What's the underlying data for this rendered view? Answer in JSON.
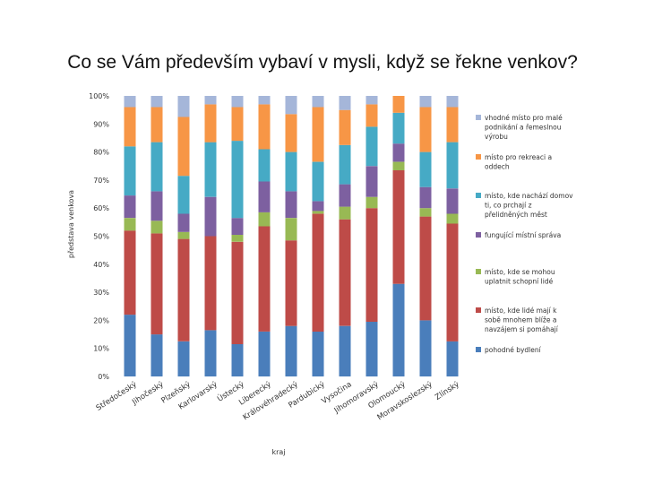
{
  "slide": {
    "title": "Co se Vám především vybaví v mysli, když se řekne venkov?"
  },
  "chart_data": {
    "type": "bar",
    "stacked": true,
    "percent": true,
    "ylabel": "představa venkova",
    "xlabel": "kraj",
    "ylim": [
      0,
      100
    ],
    "y_ticks": [
      "0%",
      "10%",
      "20%",
      "30%",
      "40%",
      "50%",
      "60%",
      "70%",
      "80%",
      "90%",
      "100%"
    ],
    "grid": false,
    "legend_position": "right",
    "categories": [
      "Středočeský",
      "Jihočeský",
      "Plzeňský",
      "Karlovarský",
      "Ústecký",
      "Liberecký",
      "Královéhradecký",
      "Pardubický",
      "Vysočina",
      "Jihomoravský",
      "Olomoucký",
      "Moravskoslezský",
      "Zlínský"
    ],
    "series": [
      {
        "name": "pohodné bydlení",
        "color": "#4A7EBB",
        "values": [
          22,
          15,
          12.5,
          16.5,
          11.5,
          16,
          18,
          16,
          18,
          19.5,
          33,
          20,
          12.5
        ]
      },
      {
        "name": "místo, kde lidé mají k sobě mnohem blíže a navzájem si pomáhají",
        "color": "#BE4B48",
        "values": [
          30,
          36,
          36.5,
          33.5,
          36.5,
          37.5,
          30.5,
          42,
          38,
          40.5,
          40.5,
          37,
          42
        ]
      },
      {
        "name": "místo, kde se mohou uplatnit schopní lidé",
        "color": "#98B954",
        "values": [
          4.5,
          4.5,
          2.5,
          0,
          2.5,
          5,
          8,
          1,
          4.5,
          4,
          3,
          3,
          3.5
        ]
      },
      {
        "name": "fungující místní správa",
        "color": "#7D60A0",
        "values": [
          8,
          10.5,
          6.5,
          14,
          6,
          11,
          9.5,
          3.5,
          8,
          11,
          6.5,
          7.5,
          9
        ]
      },
      {
        "name": "místo, kde nachází domov ti, co prchají z přelidněných měst",
        "color": "#46AAC5",
        "values": [
          17.5,
          17.5,
          13.5,
          19.5,
          27.5,
          11.5,
          14,
          14,
          14,
          14,
          11,
          12.5,
          16.5
        ]
      },
      {
        "name": "místo pro rekreaci a oddech",
        "color": "#F79646",
        "values": [
          14,
          12.5,
          21,
          13.5,
          12,
          16,
          13.5,
          19.5,
          12.5,
          8,
          6,
          16,
          12.5
        ]
      },
      {
        "name": "vhodné místo pro malé podnikání a řemeslnou výrobu",
        "color": "#A5B6D9",
        "values": [
          4,
          4,
          7.5,
          3,
          4,
          3,
          6.5,
          4,
          5,
          3,
          0,
          4,
          4
        ]
      }
    ]
  }
}
